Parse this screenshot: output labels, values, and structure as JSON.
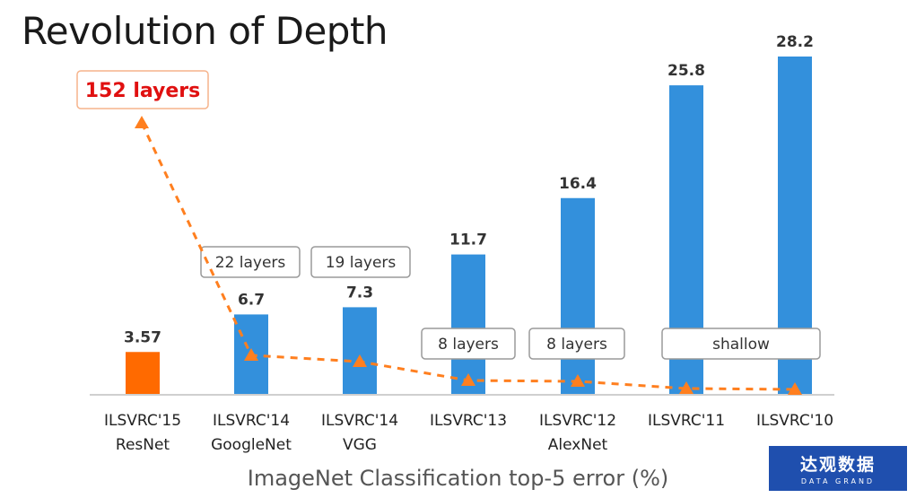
{
  "slide": {
    "title": "Revolution of Depth",
    "caption": "ImageNet Classification top-5 error (%)"
  },
  "logo": {
    "cn": "达观数据",
    "en": "DATA GRAND"
  },
  "colors": {
    "highlight_bar": "#ff6a00",
    "bar": "#3390dc",
    "depth_line": "#ff7f1f",
    "highlight_text": "#e01010",
    "axis": "#cfcfcf"
  },
  "chart_data": {
    "type": "bar",
    "categories": [
      "ILSVRC'15",
      "ILSVRC'14",
      "ILSVRC'14",
      "ILSVRC'13",
      "ILSVRC'12",
      "ILSVRC'11",
      "ILSVRC'10"
    ],
    "sublabels": [
      "ResNet",
      "GoogleNet",
      "VGG",
      "",
      "AlexNet",
      "",
      ""
    ],
    "values": [
      3.57,
      6.7,
      7.3,
      11.7,
      16.4,
      25.8,
      28.2
    ],
    "value_labels": [
      "3.57",
      "6.7",
      "7.3",
      "11.7",
      "16.4",
      "25.8",
      "28.2"
    ],
    "highlight_index": 0,
    "ylim": [
      0,
      28.2
    ],
    "grid": false,
    "depth_labels": [
      "152 layers",
      "22 layers",
      "19 layers",
      "8 layers",
      "8 layers",
      "shallow"
    ],
    "depth_series": {
      "description_free_values": [
        152,
        22,
        19,
        8,
        8,
        0,
        0
      ],
      "style": "dashed-triangles"
    }
  }
}
